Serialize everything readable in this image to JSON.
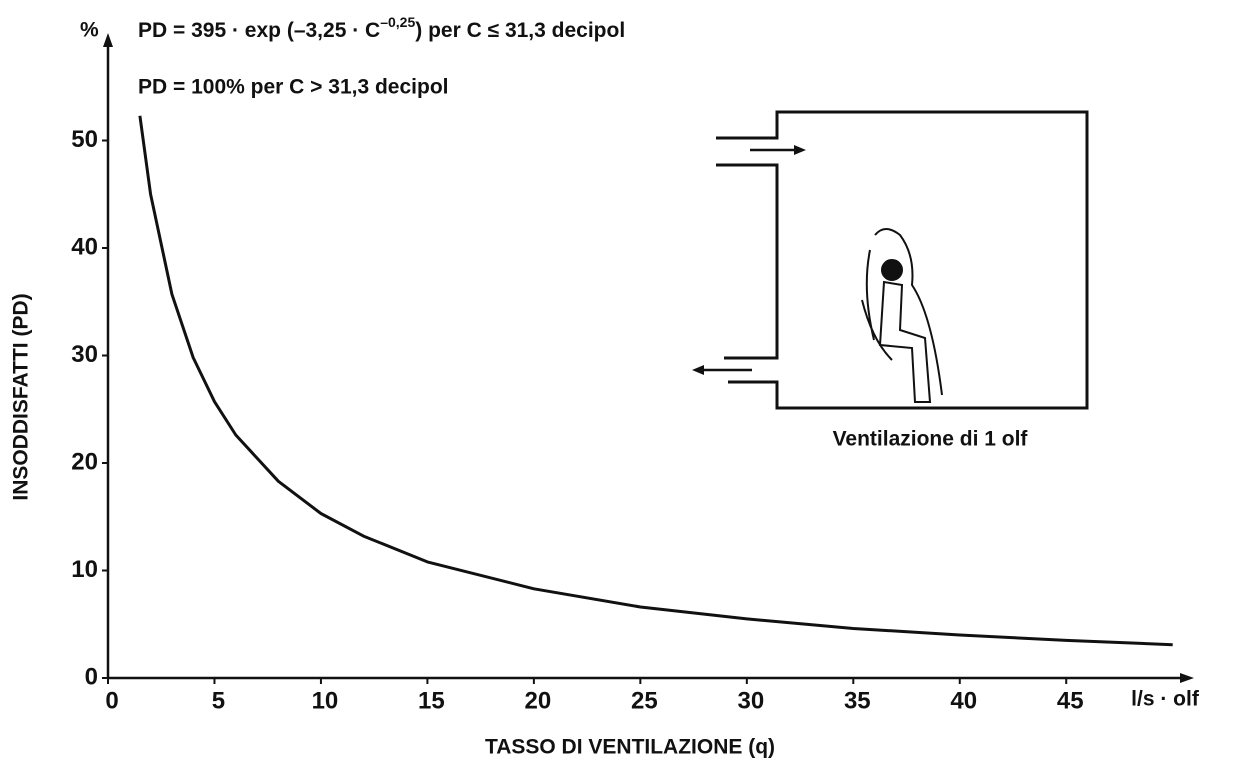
{
  "chart_data": {
    "type": "line",
    "formula": {
      "main": "PD = 395 · exp (–3,25 · C",
      "exponent": "–0,25",
      "tail": ") per C ≤ 31,3 decipol"
    },
    "formula_2": "PD = 100% per C > 31,3 decipol",
    "y_unit": "%",
    "x_unit": "l/s · olf",
    "x_label": "TASSO DI VENTILAZIONE (q)",
    "y_label": "INSODDISFATTI (PD)",
    "inset_label": "Ventilazione di 1 olf",
    "x": [
      1.5,
      2,
      3,
      4,
      5,
      6,
      8,
      10,
      12,
      15,
      20,
      25,
      30,
      35,
      40,
      45,
      50
    ],
    "series": [
      {
        "color": "#111111",
        "values": [
          52.3,
          45.0,
          35.7,
          29.8,
          25.7,
          22.6,
          18.3,
          15.3,
          13.2,
          10.8,
          8.3,
          6.6,
          5.5,
          4.6,
          4.0,
          3.5,
          3.1
        ]
      }
    ],
    "xlim": [
      0,
      51
    ],
    "xticks": [
      0,
      5,
      10,
      15,
      20,
      25,
      30,
      35,
      40,
      45
    ],
    "ylim": [
      0,
      60
    ],
    "yticks": [
      0,
      10,
      20,
      30,
      40,
      50
    ],
    "grid": false
  }
}
